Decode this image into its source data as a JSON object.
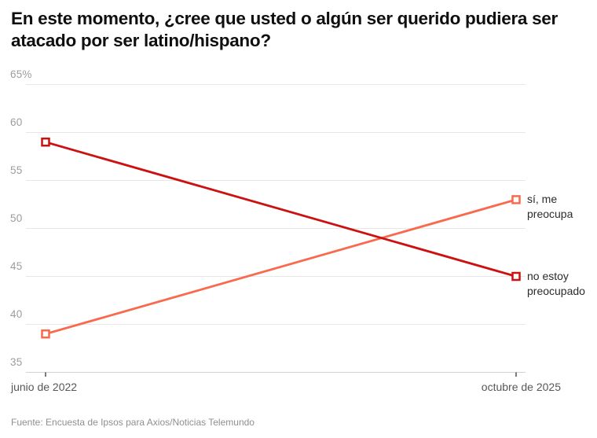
{
  "header": {
    "title": "En este momento, ¿cree que usted o algún ser querido pudiera ser atacado por ser latino/hispano?"
  },
  "footer": {
    "source": "Fuente: Encuesta de Ipsos para Axios/Noticias Telemundo"
  },
  "chart_data": {
    "type": "line",
    "title": "En este momento, ¿cree que usted o algún ser querido pudiera ser atacado por ser latino/hispano?",
    "x_categories": [
      "junio de 2022",
      "octubre de 2025"
    ],
    "ylim": [
      35,
      65
    ],
    "grid": true,
    "legend_position": "right-of-last-point",
    "y_ticks": [
      {
        "value": 65,
        "label": "65%"
      },
      {
        "value": 60,
        "label": "60"
      },
      {
        "value": 55,
        "label": "55"
      },
      {
        "value": 50,
        "label": "50"
      },
      {
        "value": 45,
        "label": "45"
      },
      {
        "value": 40,
        "label": "40"
      },
      {
        "value": 35,
        "label": "35"
      }
    ],
    "series": [
      {
        "name": "sí, me preocupa",
        "legend_lines": [
          "sí, me",
          "preocupa"
        ],
        "color": "#f9694b",
        "marker": "open-square",
        "values": [
          39,
          53
        ]
      },
      {
        "name": "no estoy preocupado",
        "legend_lines": [
          "no estoy",
          "preocupado"
        ],
        "color": "#cc1111",
        "marker": "open-square",
        "values": [
          59,
          45
        ]
      }
    ]
  }
}
